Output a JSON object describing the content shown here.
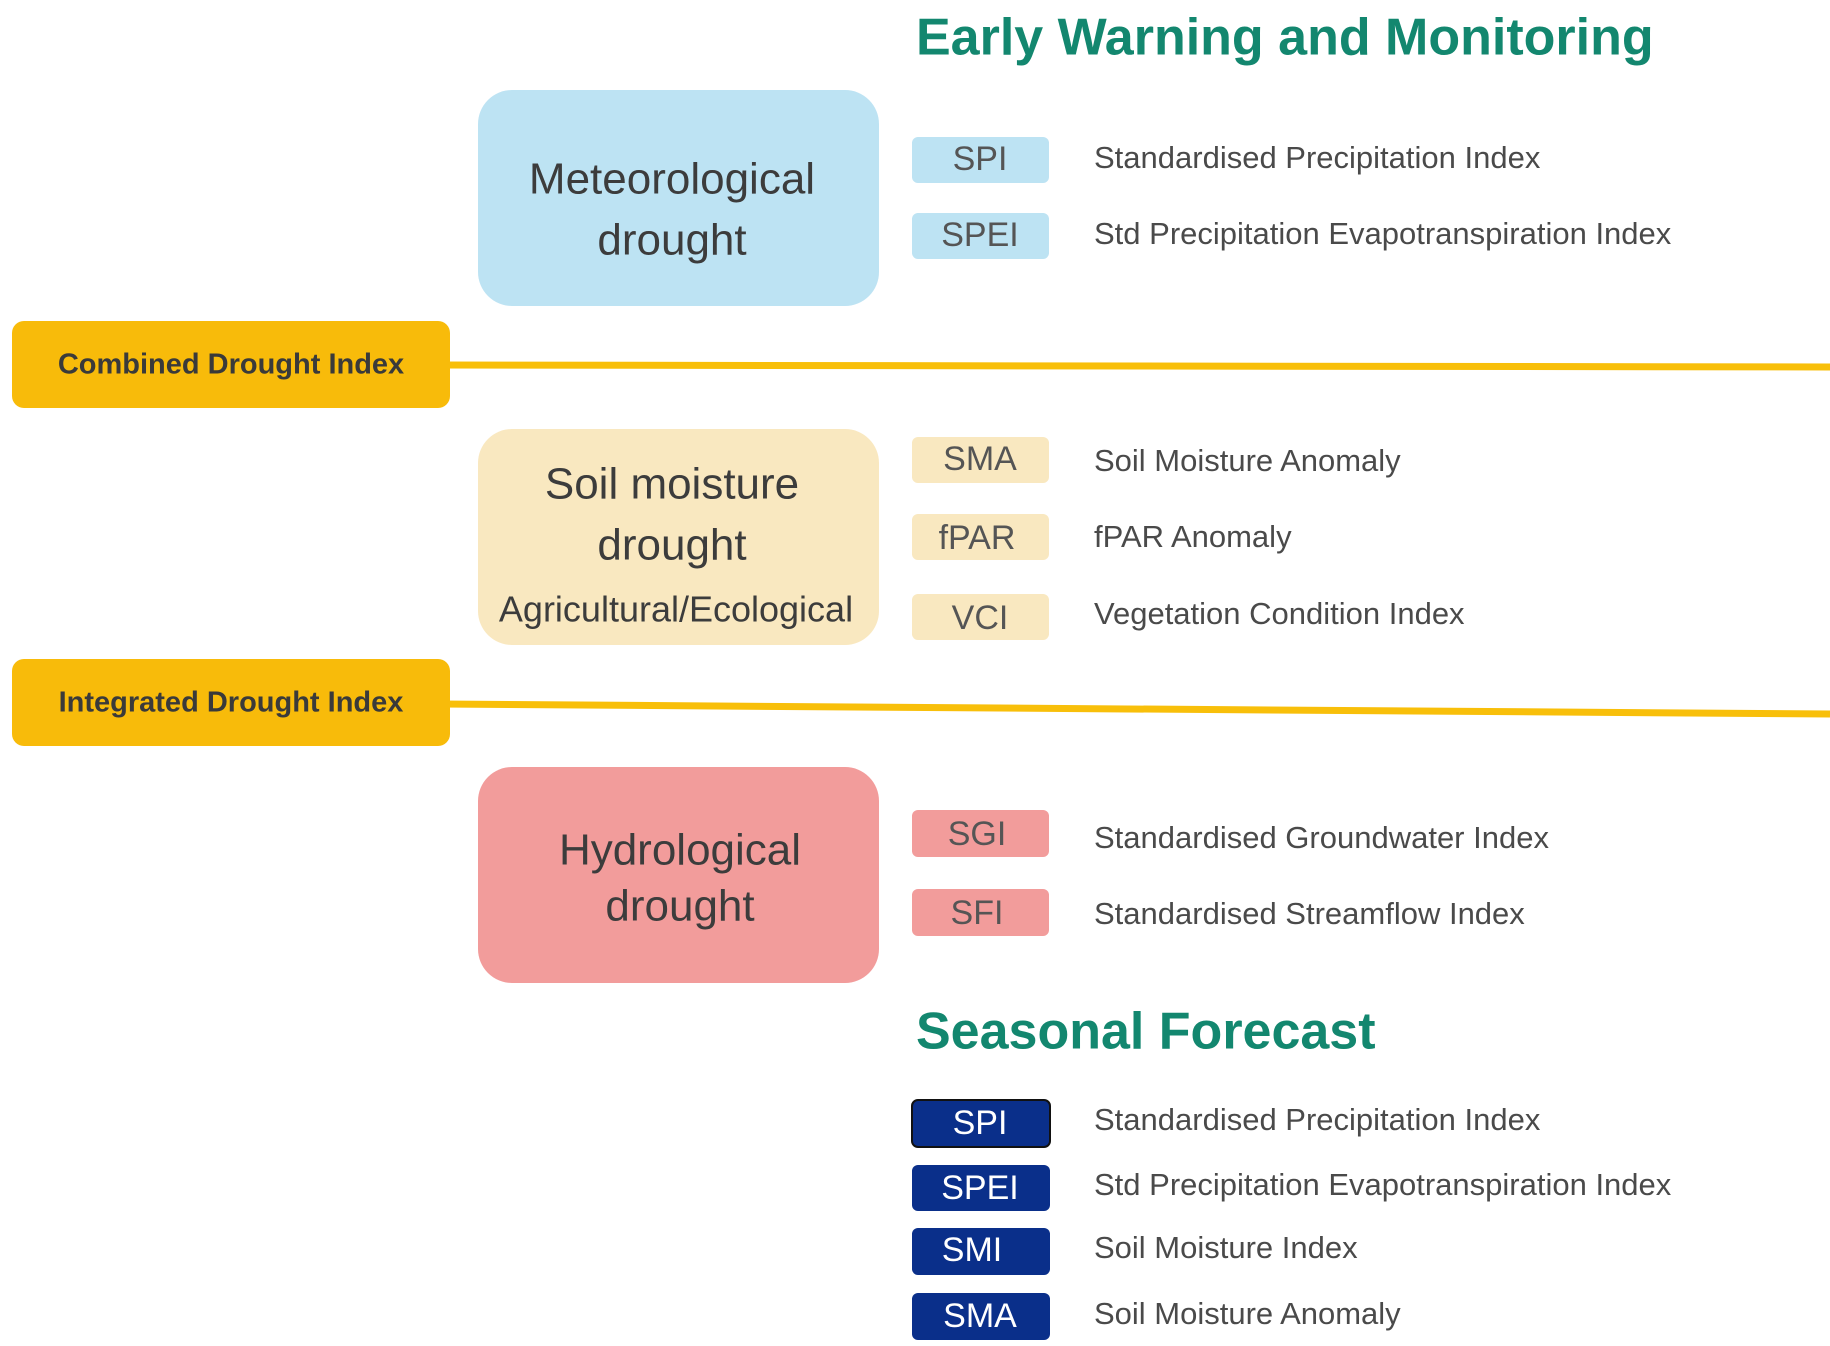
{
  "header": {
    "early_warning_title": "Early Warning and Monitoring",
    "seasonal_title": "Seasonal Forecast"
  },
  "groups": [
    {
      "lines": [
        "Meteorological",
        "drought"
      ],
      "indices": [
        {
          "code": "SPI",
          "name": "Standardised Precipitation Index"
        },
        {
          "code": "SPEI",
          "name": "Std Precipitation Evapotranspiration Index"
        }
      ]
    },
    {
      "lines": [
        "Soil moisture",
        "drought",
        "Agricultural/Ecological"
      ],
      "indices": [
        {
          "code": "SMA",
          "name": "Soil Moisture Anomaly"
        },
        {
          "code": "fPAR",
          "name": "fPAR Anomaly"
        },
        {
          "code": "VCI",
          "name": "Vegetation Condition Index"
        }
      ]
    },
    {
      "lines": [
        "Hydrological",
        "drought"
      ],
      "indices": [
        {
          "code": "SGI",
          "name": "Standardised Groundwater Index"
        },
        {
          "code": "SFI",
          "name": "Standardised Streamflow Index"
        }
      ]
    }
  ],
  "bands": [
    "Combined Drought Index",
    "Integrated Drought Index"
  ],
  "forecast": [
    {
      "code": "SPI",
      "name": "Standardised Precipitation Index"
    },
    {
      "code": "SPEI",
      "name": "Std Precipitation Evapotranspiration Index"
    },
    {
      "code": "SMI",
      "name": "Soil Moisture Index"
    },
    {
      "code": "SMA",
      "name": "Soil Moisture Anomaly"
    }
  ]
}
